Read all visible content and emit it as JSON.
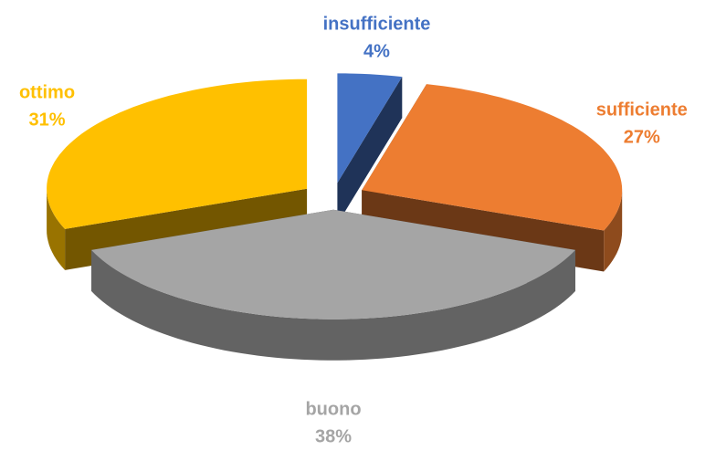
{
  "chart_data": {
    "type": "pie",
    "categories": [
      "insufficiente",
      "sufficiente",
      "buono",
      "ottimo"
    ],
    "values": [
      4,
      27,
      38,
      31
    ],
    "value_labels": [
      "4%",
      "27%",
      "38%",
      "31%"
    ],
    "colors": [
      "#4472c4",
      "#ed7d31",
      "#a5a5a5",
      "#ffc000"
    ],
    "exploded": true,
    "three_d": true
  }
}
